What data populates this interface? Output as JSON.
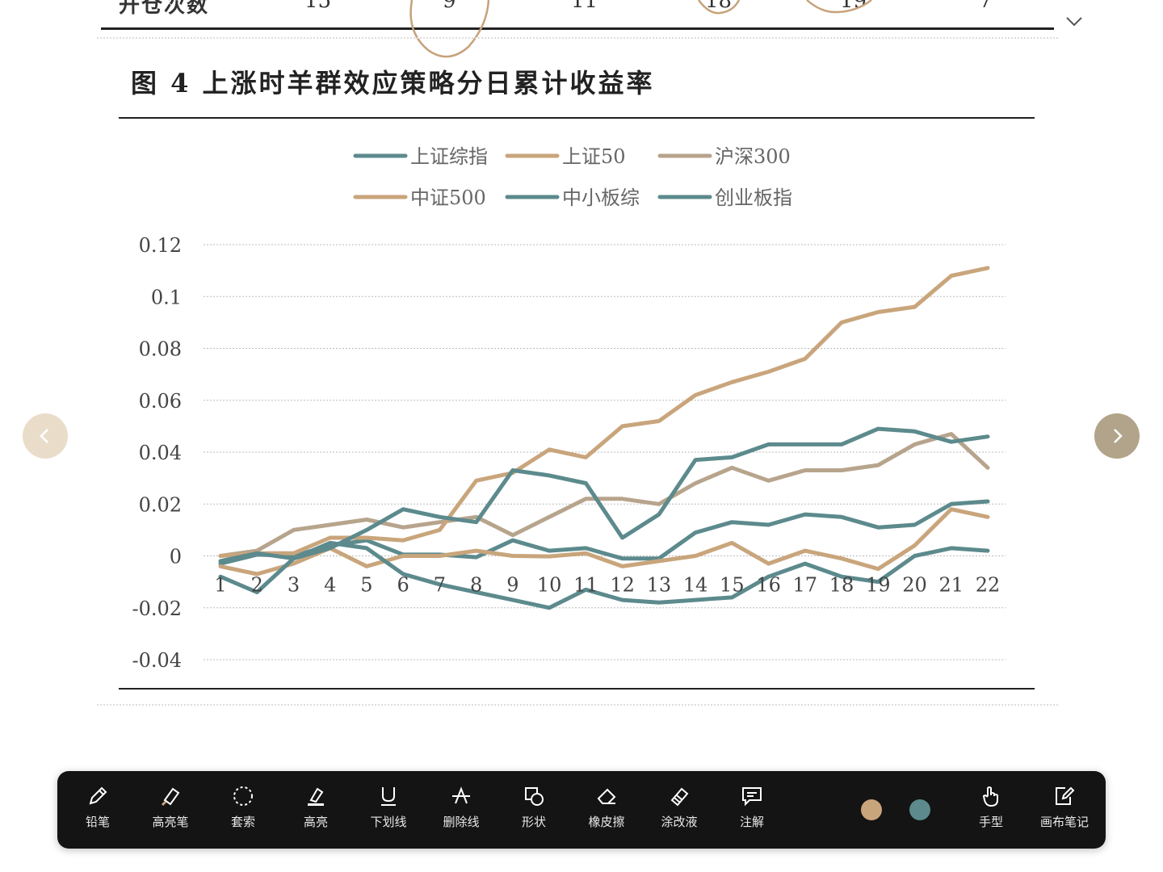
{
  "top_table": {
    "row_label": "开仓次数",
    "values": [
      "15",
      "9",
      "11",
      "18",
      "19",
      "7"
    ]
  },
  "figure": {
    "title": "图  4 上涨时羊群效应策略分日累计收益率"
  },
  "colors": {
    "tan": "#c9a57c",
    "teal": "#5c8a8d",
    "khaki": "#b7a48c"
  },
  "chart_data": {
    "type": "line",
    "x": [
      1,
      2,
      3,
      4,
      5,
      6,
      7,
      8,
      9,
      10,
      11,
      12,
      13,
      14,
      15,
      16,
      17,
      18,
      19,
      20,
      21,
      22
    ],
    "ylim": [
      -0.04,
      0.12
    ],
    "yticks": [
      "0.12",
      "0.1",
      "0.08",
      "0.06",
      "0.04",
      "0.02",
      "0",
      "-0.02",
      "-0.04"
    ],
    "grid": true,
    "legend_position": "top-center",
    "series": [
      {
        "name": "上证综指",
        "color": "#5c8a8d",
        "values": [
          -0.003,
          0.0005,
          0.0,
          0.004,
          0.006,
          0.0005,
          0.0005,
          -0.0005,
          0.006,
          0.002,
          0.003,
          -0.001,
          -0.001,
          0.009,
          0.013,
          0.012,
          0.016,
          0.015,
          0.011,
          0.012,
          0.02,
          0.021
        ]
      },
      {
        "name": "上证50",
        "color": "#c9a57c",
        "values": [
          -0.004,
          -0.007,
          -0.003,
          0.003,
          -0.004,
          0.0,
          0.0,
          0.002,
          0.0,
          -0.0002,
          0.001,
          -0.004,
          -0.002,
          0.0,
          0.005,
          -0.003,
          0.002,
          -0.001,
          -0.005,
          0.004,
          0.018,
          0.015
        ]
      },
      {
        "name": "沪深300",
        "color": "#b7a48c",
        "values": [
          0.0,
          0.002,
          0.01,
          0.012,
          0.014,
          0.011,
          0.013,
          0.015,
          0.008,
          0.015,
          0.022,
          0.022,
          0.02,
          0.028,
          0.034,
          0.029,
          0.033,
          0.033,
          0.035,
          0.043,
          0.047,
          0.034
        ]
      },
      {
        "name": "中证500",
        "color": "#c9a57c",
        "values": [
          0.0,
          0.001,
          0.001,
          0.007,
          0.007,
          0.006,
          0.01,
          0.029,
          0.032,
          0.041,
          0.038,
          0.05,
          0.052,
          0.062,
          0.067,
          0.071,
          0.076,
          0.09,
          0.094,
          0.096,
          0.108,
          0.111
        ]
      },
      {
        "name": "中小板综",
        "color": "#5c8a8d",
        "values": [
          -0.008,
          -0.014,
          -0.001,
          0.005,
          0.003,
          -0.007,
          -0.011,
          -0.014,
          -0.017,
          -0.02,
          -0.013,
          -0.017,
          -0.018,
          -0.017,
          -0.016,
          -0.008,
          -0.003,
          -0.008,
          -0.01,
          0.0,
          0.003,
          0.002
        ]
      },
      {
        "name": "创业板指",
        "color": "#5c8a8d",
        "values": [
          -0.002,
          0.001,
          -0.001,
          0.003,
          0.01,
          0.018,
          0.015,
          0.013,
          0.033,
          0.031,
          0.028,
          0.007,
          0.016,
          0.037,
          0.038,
          0.043,
          0.043,
          0.043,
          0.049,
          0.048,
          0.044,
          0.046
        ]
      }
    ]
  },
  "navigation": {
    "prev_icon": "chevron-left-icon",
    "next_icon": "chevron-right-icon"
  },
  "toolbar": {
    "tools": [
      {
        "id": "pencil",
        "label": "铅笔",
        "icon": "pencil-icon"
      },
      {
        "id": "highlighter-pen",
        "label": "高亮笔",
        "icon": "highlighter-icon"
      },
      {
        "id": "lasso",
        "label": "套索",
        "icon": "lasso-icon"
      },
      {
        "id": "highlight",
        "label": "高亮",
        "icon": "highlight-icon"
      },
      {
        "id": "underline",
        "label": "下划线",
        "icon": "underline-icon"
      },
      {
        "id": "strikethrough",
        "label": "删除线",
        "icon": "strikethrough-icon"
      },
      {
        "id": "shape",
        "label": "形状",
        "icon": "shape-icon"
      },
      {
        "id": "eraser",
        "label": "橡皮擦",
        "icon": "eraser-icon"
      },
      {
        "id": "correction",
        "label": "涂改液",
        "icon": "correction-fluid-icon"
      },
      {
        "id": "comment",
        "label": "注解",
        "icon": "comment-icon"
      },
      {
        "id": "hand",
        "label": "手型",
        "icon": "hand-icon"
      },
      {
        "id": "canvas-note",
        "label": "画布笔记",
        "icon": "canvas-note-icon"
      }
    ],
    "swatches": [
      "#c9a57c",
      "#5c8a8d"
    ]
  }
}
